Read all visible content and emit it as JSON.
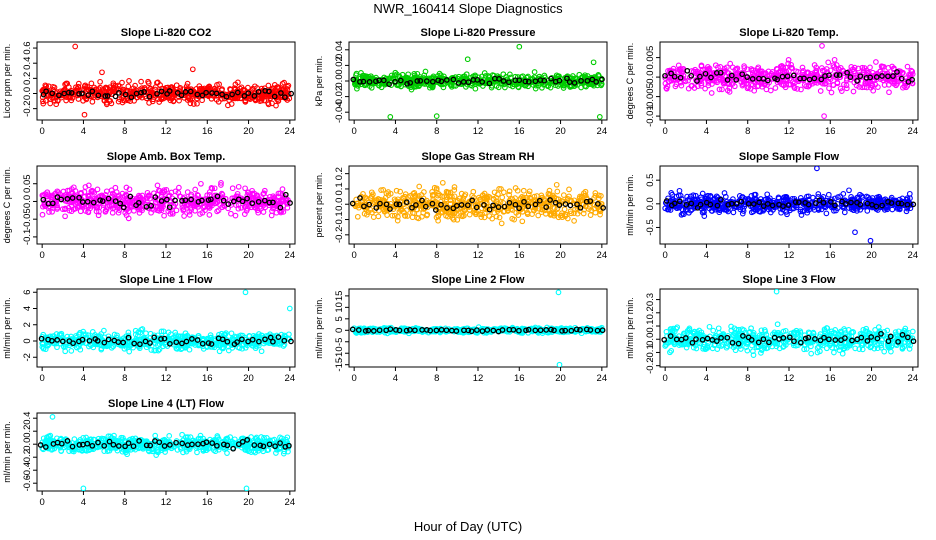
{
  "figure": {
    "title": "NWR_160414  Slope Diagnostics",
    "xlabel": "Hour of Day (UTC)"
  },
  "chart_data": [
    {
      "type": "scatter",
      "title": "Slope Li-820 CO2",
      "ylabel": "Licor ppm per min.",
      "xlim": [
        -0.5,
        24.5
      ],
      "ylim": [
        -0.35,
        0.68
      ],
      "yticks": [
        -0.2,
        0.0,
        0.2,
        0.4,
        0.6
      ],
      "xticks": [
        0,
        4,
        8,
        12,
        16,
        20,
        24
      ],
      "color": "#ff0000",
      "series": {
        "spread": 0.12,
        "outliers": [
          {
            "x": 3.2,
            "y": 0.62
          },
          {
            "x": 4.1,
            "y": -0.28
          },
          {
            "x": 14.6,
            "y": 0.32
          },
          {
            "x": 5.8,
            "y": 0.28
          }
        ]
      }
    },
    {
      "type": "scatter",
      "title": "Slope Li-820 Pressure",
      "ylabel": "kPa per min.",
      "xlim": [
        -0.5,
        24.5
      ],
      "ylim": [
        -0.05,
        0.05
      ],
      "yticks": [
        -0.04,
        -0.02,
        0.0,
        0.02,
        0.04
      ],
      "xticks": [
        0,
        4,
        8,
        12,
        16,
        20,
        24
      ],
      "color": "#00cc00",
      "series": {
        "spread": 0.008,
        "outliers": [
          {
            "x": 3.5,
            "y": -0.046
          },
          {
            "x": 8.0,
            "y": -0.045
          },
          {
            "x": 16.0,
            "y": 0.044
          },
          {
            "x": 23.8,
            "y": -0.046
          },
          {
            "x": 23.2,
            "y": 0.024
          },
          {
            "x": 11.0,
            "y": 0.028
          }
        ]
      }
    },
    {
      "type": "scatter",
      "title": "Slope Li-820 Temp.",
      "ylabel": "degrees C per min.",
      "xlim": [
        -0.5,
        24.5
      ],
      "ylim": [
        -0.011,
        0.009
      ],
      "yticks": [
        -0.01,
        -0.005,
        0.0,
        0.005
      ],
      "xticks": [
        0,
        4,
        8,
        12,
        16,
        20,
        24
      ],
      "color": "#ff00ff",
      "series": {
        "spread": 0.003,
        "outliers": [
          {
            "x": 15.2,
            "y": 0.008
          },
          {
            "x": 15.4,
            "y": -0.01
          }
        ]
      }
    },
    {
      "type": "scatter",
      "title": "Slope Amb. Box Temp.",
      "ylabel": "degrees C per min.",
      "xlim": [
        -0.5,
        24.5
      ],
      "ylim": [
        -0.12,
        0.1
      ],
      "yticks": [
        -0.1,
        -0.05,
        0.0,
        0.05
      ],
      "xticks": [
        0,
        4,
        8,
        12,
        16,
        20,
        24
      ],
      "color": "#ff00ff",
      "series": {
        "spread": 0.035,
        "outliers": []
      }
    },
    {
      "type": "scatter",
      "title": "Slope Gas Stream RH",
      "ylabel": "percent per min.",
      "xlim": [
        -0.5,
        24.5
      ],
      "ylim": [
        -0.26,
        0.25
      ],
      "yticks": [
        -0.2,
        -0.1,
        0.0,
        0.1,
        0.2
      ],
      "xticks": [
        0,
        4,
        8,
        12,
        16,
        20,
        24
      ],
      "color": "#ffaa00",
      "series": {
        "spread": 0.09,
        "outliers": []
      }
    },
    {
      "type": "scatter",
      "title": "Slope Sample Flow",
      "ylabel": "ml/min per min.",
      "xlim": [
        -0.5,
        24.5
      ],
      "ylim": [
        -0.85,
        0.8
      ],
      "yticks": [
        -0.5,
        0.0,
        0.5
      ],
      "xticks": [
        0,
        4,
        8,
        12,
        16,
        20,
        24
      ],
      "color": "#0000ff",
      "series": {
        "spread": 0.18,
        "outliers": [
          {
            "x": 14.7,
            "y": 0.75
          },
          {
            "x": 19.9,
            "y": -0.78
          },
          {
            "x": 18.4,
            "y": -0.6
          }
        ]
      }
    },
    {
      "type": "scatter",
      "title": "Slope Line 1 Flow",
      "ylabel": "ml/min per min.",
      "xlim": [
        -0.5,
        24.5
      ],
      "ylim": [
        -3.2,
        6.4
      ],
      "yticks": [
        -2,
        0,
        2,
        4,
        6
      ],
      "xticks": [
        0,
        4,
        8,
        12,
        16,
        20,
        24
      ],
      "color": "#00ffff",
      "series": {
        "spread": 1.0,
        "outliers": [
          {
            "x": 19.7,
            "y": 6.0
          },
          {
            "x": 24.0,
            "y": 4.0
          }
        ]
      }
    },
    {
      "type": "scatter",
      "title": "Slope Line 2 Flow",
      "ylabel": "ml/min per min.",
      "xlim": [
        -0.5,
        24.5
      ],
      "ylim": [
        -16,
        18
      ],
      "yticks": [
        -15,
        -10,
        -5,
        0,
        5,
        10,
        15
      ],
      "xticks": [
        0,
        4,
        8,
        12,
        16,
        20,
        24
      ],
      "color": "#00ffff",
      "series": {
        "spread": 1.0,
        "outliers": [
          {
            "x": 19.8,
            "y": 16.5
          },
          {
            "x": 19.9,
            "y": -15.0
          }
        ]
      }
    },
    {
      "type": "scatter",
      "title": "Slope Line 3 Flow",
      "ylabel": "ml/min per min.",
      "xlim": [
        -0.5,
        24.5
      ],
      "ylim": [
        -0.21,
        0.38
      ],
      "yticks": [
        -0.2,
        -0.1,
        0.0,
        0.1,
        0.2,
        0.3
      ],
      "xticks": [
        0,
        4,
        8,
        12,
        16,
        20,
        24
      ],
      "color": "#00ffff",
      "series": {
        "spread": 0.08,
        "outliers": [
          {
            "x": 10.8,
            "y": 0.36
          }
        ]
      }
    },
    {
      "type": "scatter",
      "title": "Slope Line 4 (LT) Flow",
      "ylabel": "ml/min per min.",
      "xlim": [
        -0.5,
        24.5
      ],
      "ylim": [
        -0.72,
        0.48
      ],
      "yticks": [
        -0.6,
        -0.4,
        -0.2,
        0.0,
        0.2,
        0.4
      ],
      "xticks": [
        0,
        4,
        8,
        12,
        16,
        20,
        24
      ],
      "color": "#00ffff",
      "series": {
        "spread": 0.12,
        "outliers": [
          {
            "x": 1.0,
            "y": 0.42
          },
          {
            "x": 4.0,
            "y": -0.68
          },
          {
            "x": 19.8,
            "y": -0.68
          }
        ]
      }
    }
  ]
}
